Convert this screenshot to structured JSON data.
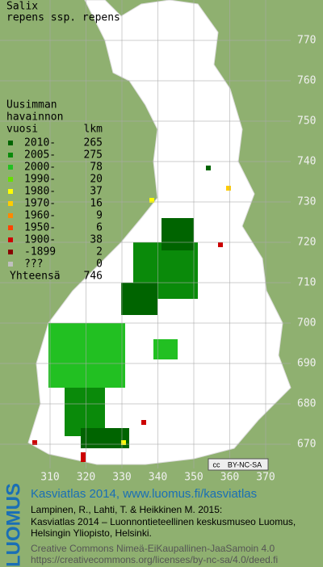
{
  "title": "Salix",
  "subtitle": "repens ssp. repens",
  "legend": {
    "header": [
      "Uusimman",
      "havainnon"
    ],
    "col_year": "vuosi",
    "col_count": "lkm",
    "rows": [
      {
        "label": "2010-",
        "count": 265,
        "color": "#006400"
      },
      {
        "label": "2005-",
        "count": 275,
        "color": "#0a8a0a"
      },
      {
        "label": "2000-",
        "count": 78,
        "color": "#22c022"
      },
      {
        "label": "1990-",
        "count": 20,
        "color": "#66e000"
      },
      {
        "label": "1980-",
        "count": 37,
        "color": "#ffff00"
      },
      {
        "label": "1970-",
        "count": 16,
        "color": "#ffcc00"
      },
      {
        "label": "1960-",
        "count": 9,
        "color": "#ff8800"
      },
      {
        "label": "1950-",
        "count": 6,
        "color": "#ff4400"
      },
      {
        "label": "1900-",
        "count": 38,
        "color": "#cc0000"
      },
      {
        "label": "-1899",
        "count": 2,
        "color": "#880000"
      },
      {
        "label": "???",
        "count": 0,
        "color": "#c0c0c0"
      }
    ],
    "total_label": "Yhteensä",
    "total": 746
  },
  "grid": {
    "xticks": [
      310,
      320,
      330,
      340,
      350,
      360,
      370
    ],
    "yticks": [
      770,
      760,
      750,
      740,
      730,
      720,
      710,
      700,
      690,
      680,
      670
    ]
  },
  "badge": {
    "cc": "cc",
    "license": "BY-NC-SA"
  },
  "footer": {
    "brand": "LUOMUS",
    "headline": "Kasviatlas 2014, www.luomus.fi/kasviatlas",
    "citation": [
      "Lampinen, R., Lahti, T. & Heikkinen M. 2015:",
      "Kasviatlas 2014 – Luonnontieteellinen keskusmuseo Luomus,",
      "Helsingin Yliopisto, Helsinki."
    ],
    "license": [
      "Creative Commons Nimeä-EiKaupallinen-JaaSamoin 4.0",
      "https://creativecommons.org/licenses/by-nc-sa/4.0/deed.fi"
    ]
  }
}
